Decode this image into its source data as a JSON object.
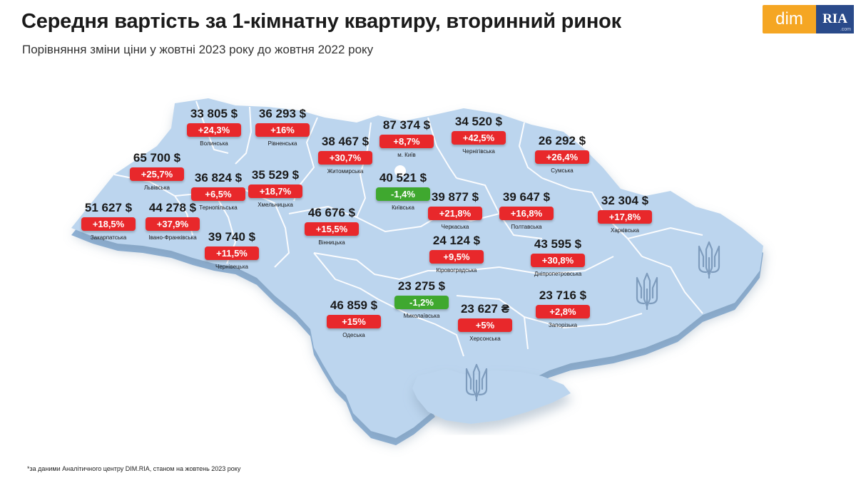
{
  "header": {
    "title": "Середня вартість за 1-кімнатну квартиру, вторинний ринок",
    "subtitle": "Порівняння зміни ціни у жовтні 2023 року до жовтня 2022 року"
  },
  "logo": {
    "left_text": "dim",
    "right_text": "RIA",
    "small_text": ".com"
  },
  "colors": {
    "map_fill": "#bcd5ee",
    "map_edge": "#8fb3d8",
    "border_line": "#ffffff",
    "increase": "#e8282b",
    "decrease": "#3fa82f"
  },
  "regions": [
    {
      "id": "volyn",
      "name": "Волинська",
      "price": "33 805 $",
      "change": "+24,3%",
      "trend": "up"
    },
    {
      "id": "rivne",
      "name": "Рівненська",
      "price": "36 293 $",
      "change": "+16%",
      "trend": "up"
    },
    {
      "id": "kyiv-city",
      "name": "м. Київ",
      "price": "87 374 $",
      "change": "+8,7%",
      "trend": "up"
    },
    {
      "id": "chernihiv",
      "name": "Чернігівська",
      "price": "34 520 $",
      "change": "+42,5%",
      "trend": "up"
    },
    {
      "id": "zhytomyr",
      "name": "Житомирська",
      "price": "38 467 $",
      "change": "+30,7%",
      "trend": "up"
    },
    {
      "id": "sumy",
      "name": "Сумська",
      "price": "26 292 $",
      "change": "+26,4%",
      "trend": "up"
    },
    {
      "id": "lviv",
      "name": "Львівська",
      "price": "65 700 $",
      "change": "+25,7%",
      "trend": "up"
    },
    {
      "id": "ternopil",
      "name": "Тернопільська",
      "price": "36 824 $",
      "change": "+6,5%",
      "trend": "up"
    },
    {
      "id": "khmelnytskyi",
      "name": "Хмельницька",
      "price": "35 529 $",
      "change": "+18,7%",
      "trend": "up"
    },
    {
      "id": "kyiv-oblast",
      "name": "Київська",
      "price": "40 521 $",
      "change": "-1,4%",
      "trend": "down"
    },
    {
      "id": "cherkasy",
      "name": "Черкаська",
      "price": "39 877 $",
      "change": "+21,8%",
      "trend": "up"
    },
    {
      "id": "poltava",
      "name": "Полтавська",
      "price": "39 647 $",
      "change": "+16,8%",
      "trend": "up"
    },
    {
      "id": "kharkiv",
      "name": "Харківська",
      "price": "32 304 $",
      "change": "+17,8%",
      "trend": "up"
    },
    {
      "id": "zakarpattia",
      "name": "Закарпатська",
      "price": "51 627 $",
      "change": "+18,5%",
      "trend": "up"
    },
    {
      "id": "ivano-frankivsk",
      "name": "Івано-Франківська",
      "price": "44 278 $",
      "change": "+37,9%",
      "trend": "up"
    },
    {
      "id": "vinnytsia",
      "name": "Вінницька",
      "price": "46 676 $",
      "change": "+15,5%",
      "trend": "up"
    },
    {
      "id": "chernivtsi",
      "name": "Чернівецька",
      "price": "39 740 $",
      "change": "+11,5%",
      "trend": "up"
    },
    {
      "id": "kirovohrad",
      "name": "Кіровоградська",
      "price": "24 124 $",
      "change": "+9,5%",
      "trend": "up"
    },
    {
      "id": "dnipropetrovsk",
      "name": "Дніпропетровська",
      "price": "43 595 $",
      "change": "+30,8%",
      "trend": "up"
    },
    {
      "id": "mykolaiv",
      "name": "Миколаївська",
      "price": "23 275 $",
      "change": "-1,2%",
      "trend": "down"
    },
    {
      "id": "odesa",
      "name": "Одеська",
      "price": "46 859 $",
      "change": "+15%",
      "trend": "up"
    },
    {
      "id": "kherson",
      "name": "Херсонська",
      "price": "23 627 ₴",
      "change": "+5%",
      "trend": "up"
    },
    {
      "id": "zaporizhzhia",
      "name": "Запорізька",
      "price": "23 716 $",
      "change": "+2,8%",
      "trend": "up"
    }
  ],
  "occupied_emblems": [
    "tryzub-icon",
    "tryzub-icon",
    "tryzub-icon"
  ],
  "footnote": "*за даними Аналітичного центру DIM.RIA, станом на жовтень 2023 року"
}
